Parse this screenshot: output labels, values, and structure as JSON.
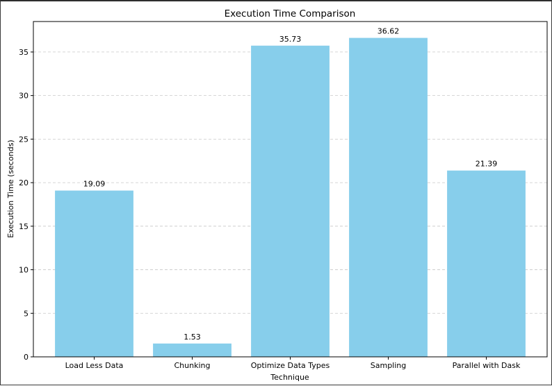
{
  "chart_data": {
    "type": "bar",
    "title": "Execution Time Comparison",
    "xlabel": "Technique",
    "ylabel": "Execution Time (seconds)",
    "categories": [
      "Load Less Data",
      "Chunking",
      "Optimize Data Types",
      "Sampling",
      "Parallel with Dask"
    ],
    "values": [
      19.09,
      1.53,
      35.73,
      36.62,
      21.39
    ],
    "value_labels": [
      "19.09",
      "1.53",
      "35.73",
      "36.62",
      "21.39"
    ],
    "ylim": [
      0,
      38.5
    ],
    "yticks": [
      0,
      5,
      10,
      15,
      20,
      25,
      30,
      35
    ],
    "grid": "horizontal dashed",
    "colors": {
      "bar": "#87ceeb",
      "grid": "#c8c8c8",
      "axis": "#000000"
    }
  }
}
